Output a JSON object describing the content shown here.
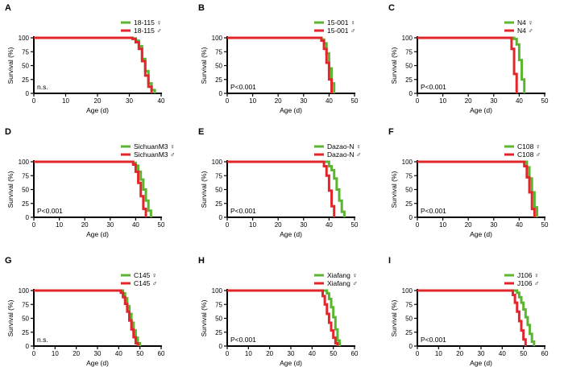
{
  "figure": {
    "y_axis_label": "Survival (%)",
    "x_axis_label": "Age (d)",
    "female_symbol": "♀",
    "male_symbol": "♂",
    "colors": {
      "female": "#5cb531",
      "male": "#e3262b"
    }
  },
  "chart_data": [
    {
      "panel": "A",
      "type": "line",
      "title": "",
      "xlabel": "Age (d)",
      "ylabel": "Survival (%)",
      "xlim": [
        0,
        40
      ],
      "xticks": [
        0,
        10,
        20,
        30,
        40
      ],
      "ylim": [
        0,
        100
      ],
      "yticks": [
        0,
        25,
        50,
        75,
        100
      ],
      "pvalue": "n.s.",
      "series": [
        {
          "name": "18-115 ♀",
          "sex": "female",
          "x": [
            0,
            30,
            31,
            32,
            33,
            34,
            35,
            36,
            37,
            38
          ],
          "y": [
            100,
            100,
            99,
            95,
            85,
            62,
            40,
            18,
            6,
            0
          ]
        },
        {
          "name": "18-115 ♂",
          "sex": "male",
          "x": [
            0,
            30,
            31,
            32,
            33,
            34,
            35,
            36,
            37
          ],
          "y": [
            100,
            100,
            98,
            92,
            80,
            58,
            32,
            12,
            0
          ]
        }
      ]
    },
    {
      "panel": "B",
      "type": "line",
      "title": "",
      "xlabel": "Age (d)",
      "ylabel": "Survival (%)",
      "xlim": [
        0,
        50
      ],
      "xticks": [
        0,
        10,
        20,
        30,
        40,
        50
      ],
      "ylim": [
        0,
        100
      ],
      "yticks": [
        0,
        25,
        50,
        75,
        100
      ],
      "pvalue": "P<0.001",
      "series": [
        {
          "name": "15-001 ♀",
          "sex": "female",
          "x": [
            0,
            36,
            37,
            38,
            39,
            40,
            41,
            42
          ],
          "y": [
            100,
            100,
            97,
            90,
            72,
            45,
            18,
            0
          ]
        },
        {
          "name": "15-001 ♂",
          "sex": "male",
          "x": [
            0,
            36,
            37,
            38,
            39,
            40,
            41
          ],
          "y": [
            100,
            100,
            95,
            80,
            55,
            25,
            0
          ]
        }
      ]
    },
    {
      "panel": "C",
      "type": "line",
      "title": "",
      "xlabel": "Age (d)",
      "ylabel": "Survival (%)",
      "xlim": [
        0,
        50
      ],
      "xticks": [
        0,
        10,
        20,
        30,
        40,
        50
      ],
      "ylim": [
        0,
        100
      ],
      "yticks": [
        0,
        25,
        50,
        75,
        100
      ],
      "pvalue": "P<0.001",
      "series": [
        {
          "name": "N4 ♀",
          "sex": "female",
          "x": [
            0,
            37,
            38,
            39,
            40,
            41,
            42
          ],
          "y": [
            100,
            100,
            98,
            88,
            60,
            25,
            0
          ]
        },
        {
          "name": "N4 ♂",
          "sex": "male",
          "x": [
            0,
            36,
            37,
            38,
            39
          ],
          "y": [
            100,
            100,
            80,
            35,
            0
          ]
        }
      ]
    },
    {
      "panel": "D",
      "type": "line",
      "title": "",
      "xlabel": "Age (d)",
      "ylabel": "Survival (%)",
      "xlim": [
        0,
        50
      ],
      "xticks": [
        0,
        10,
        20,
        30,
        40,
        50
      ],
      "ylim": [
        0,
        100
      ],
      "yticks": [
        0,
        25,
        50,
        75,
        100
      ],
      "pvalue": "P<0.001",
      "series": [
        {
          "name": "SichuanM3 ♀",
          "sex": "female",
          "x": [
            0,
            38,
            39,
            40,
            41,
            42,
            43,
            44,
            45,
            46
          ],
          "y": [
            100,
            100,
            98,
            93,
            82,
            68,
            50,
            30,
            12,
            0
          ]
        },
        {
          "name": "SichuanM3 ♂",
          "sex": "male",
          "x": [
            0,
            38,
            39,
            40,
            41,
            42,
            43,
            44
          ],
          "y": [
            100,
            100,
            95,
            82,
            62,
            38,
            15,
            0
          ]
        }
      ]
    },
    {
      "panel": "E",
      "type": "line",
      "title": "",
      "xlabel": "Age (d)",
      "ylabel": "Survival (%)",
      "xlim": [
        0,
        50
      ],
      "xticks": [
        0,
        10,
        20,
        30,
        40,
        50
      ],
      "ylim": [
        0,
        100
      ],
      "yticks": [
        0,
        25,
        50,
        75,
        100
      ],
      "pvalue": "P<0.001",
      "series": [
        {
          "name": "Dazao-N ♀",
          "sex": "female",
          "x": [
            0,
            38,
            40,
            41,
            42,
            43,
            44,
            45,
            46
          ],
          "y": [
            100,
            100,
            92,
            85,
            70,
            50,
            30,
            10,
            0
          ]
        },
        {
          "name": "Dazao-N ♂",
          "sex": "male",
          "x": [
            0,
            37,
            38,
            39,
            40,
            41,
            42
          ],
          "y": [
            100,
            100,
            92,
            75,
            48,
            20,
            0
          ]
        }
      ]
    },
    {
      "panel": "F",
      "type": "line",
      "title": "",
      "xlabel": "Age (d)",
      "ylabel": "Survival (%)",
      "xlim": [
        0,
        50
      ],
      "xticks": [
        0,
        10,
        20,
        30,
        40,
        50
      ],
      "ylim": [
        0,
        100
      ],
      "yticks": [
        0,
        25,
        50,
        75,
        100
      ],
      "pvalue": "P<0.001",
      "series": [
        {
          "name": "C108 ♀",
          "sex": "female",
          "x": [
            0,
            42,
            43,
            44,
            45,
            46,
            47
          ],
          "y": [
            100,
            100,
            90,
            70,
            45,
            18,
            0
          ]
        },
        {
          "name": "C108 ♂",
          "sex": "male",
          "x": [
            0,
            41,
            42,
            43,
            44,
            45,
            46
          ],
          "y": [
            100,
            100,
            92,
            72,
            45,
            15,
            0
          ]
        }
      ]
    },
    {
      "panel": "G",
      "type": "line",
      "title": "",
      "xlabel": "Age (d)",
      "ylabel": "Survival (%)",
      "xlim": [
        0,
        60
      ],
      "xticks": [
        0,
        10,
        20,
        30,
        40,
        50,
        60
      ],
      "ylim": [
        0,
        100
      ],
      "yticks": [
        0,
        25,
        50,
        75,
        100
      ],
      "pvalue": "n.s.",
      "series": [
        {
          "name": "C145 ♀",
          "sex": "female",
          "x": [
            0,
            40,
            42,
            43,
            44,
            45,
            46,
            47,
            48,
            49,
            50
          ],
          "y": [
            100,
            100,
            95,
            86,
            72,
            58,
            42,
            28,
            15,
            5,
            0
          ]
        },
        {
          "name": "C145 ♂",
          "sex": "male",
          "x": [
            0,
            40,
            41,
            42,
            43,
            44,
            45,
            46,
            47,
            48,
            49
          ],
          "y": [
            100,
            100,
            96,
            88,
            76,
            62,
            46,
            30,
            16,
            5,
            0
          ]
        }
      ]
    },
    {
      "panel": "H",
      "type": "line",
      "title": "",
      "xlabel": "Age (d)",
      "ylabel": "Survival (%)",
      "xlim": [
        0,
        60
      ],
      "xticks": [
        0,
        10,
        20,
        30,
        40,
        50,
        60
      ],
      "ylim": [
        0,
        100
      ],
      "yticks": [
        0,
        25,
        50,
        75,
        100
      ],
      "pvalue": "P<0.001",
      "series": [
        {
          "name": "Xiafang ♀",
          "sex": "female",
          "x": [
            0,
            46,
            47,
            48,
            49,
            50,
            51,
            52,
            53
          ],
          "y": [
            100,
            100,
            95,
            85,
            70,
            52,
            30,
            10,
            0
          ]
        },
        {
          "name": "Xiafang ♂",
          "sex": "male",
          "x": [
            0,
            44,
            45,
            46,
            47,
            48,
            49,
            50,
            51,
            52
          ],
          "y": [
            100,
            100,
            90,
            75,
            58,
            42,
            28,
            15,
            5,
            0
          ]
        }
      ]
    },
    {
      "panel": "I",
      "type": "line",
      "title": "",
      "xlabel": "Age (d)",
      "ylabel": "Survival (%)",
      "xlim": [
        0,
        60
      ],
      "xticks": [
        0,
        10,
        20,
        30,
        40,
        50,
        60
      ],
      "ylim": [
        0,
        100
      ],
      "yticks": [
        0,
        25,
        50,
        75,
        100
      ],
      "pvalue": "P<0.001",
      "series": [
        {
          "name": "J106 ♀",
          "sex": "female",
          "x": [
            0,
            46,
            47,
            48,
            49,
            50,
            51,
            52,
            53,
            54,
            55
          ],
          "y": [
            100,
            100,
            96,
            88,
            78,
            66,
            52,
            38,
            22,
            8,
            0
          ]
        },
        {
          "name": "J106 ♂",
          "sex": "male",
          "x": [
            0,
            44,
            45,
            46,
            47,
            48,
            49,
            50,
            51
          ],
          "y": [
            100,
            100,
            92,
            78,
            62,
            45,
            28,
            12,
            0
          ]
        }
      ]
    }
  ]
}
